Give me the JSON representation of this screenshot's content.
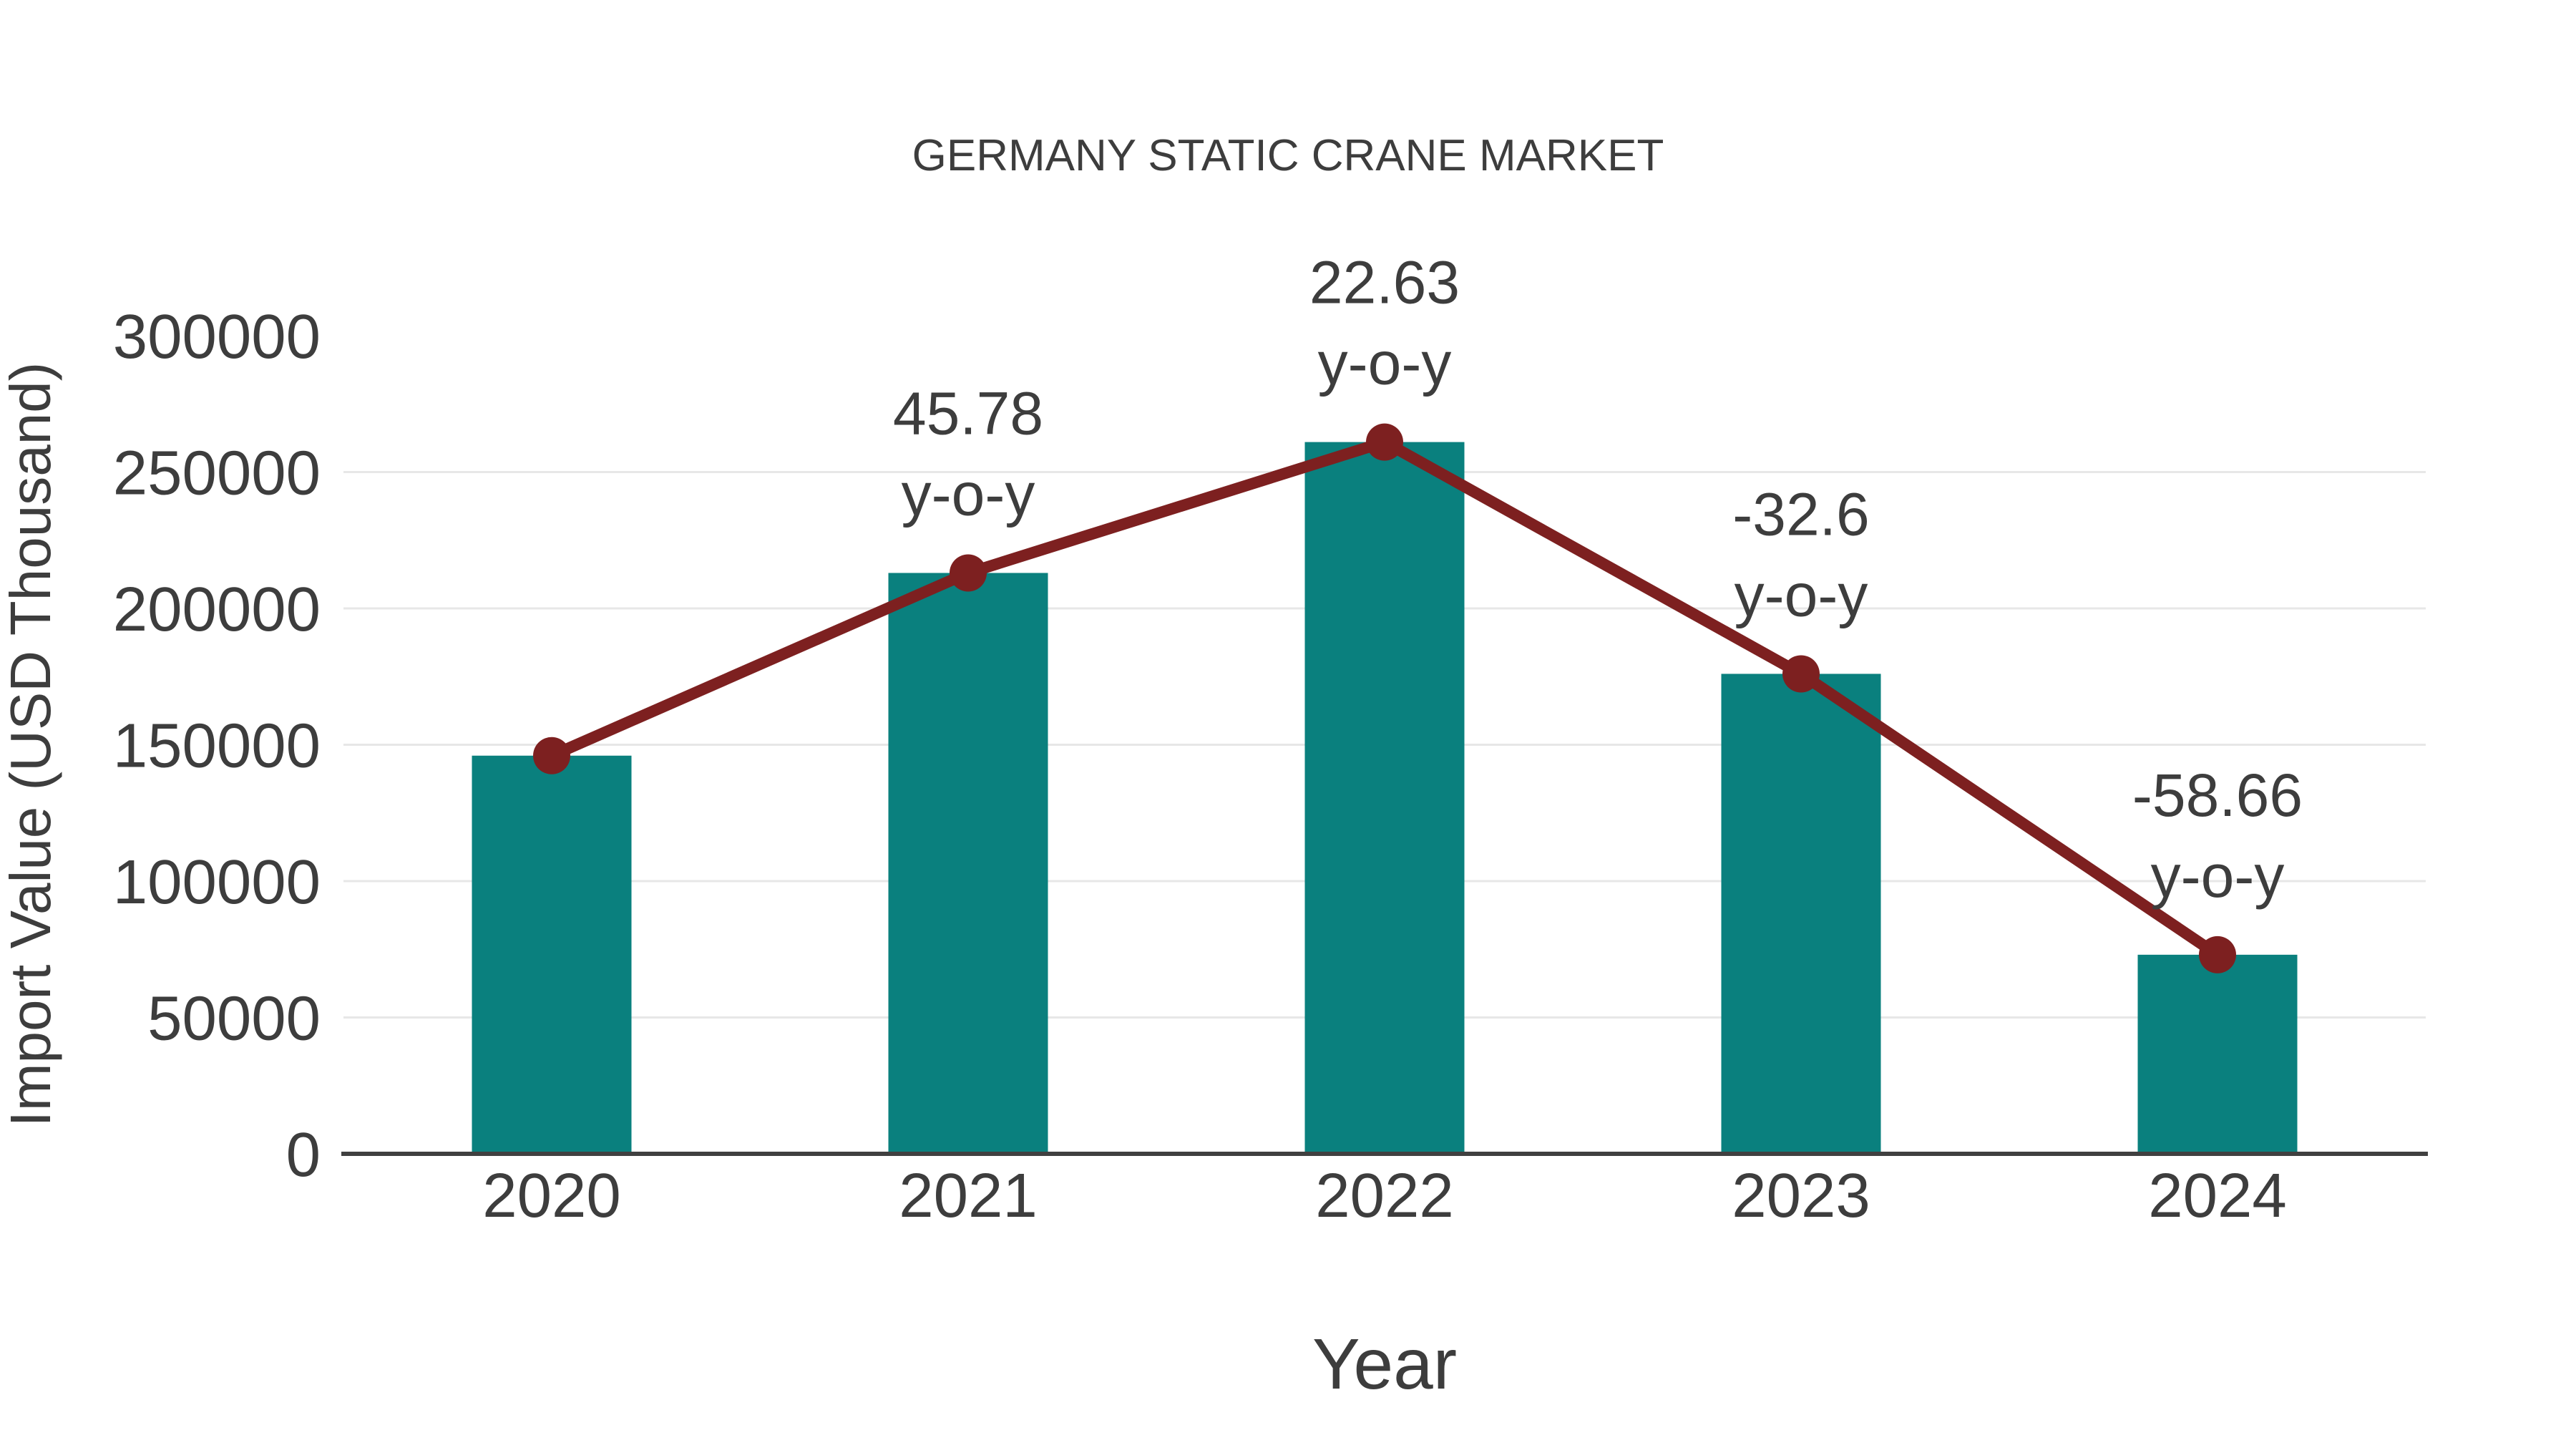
{
  "background_color": "#ffffff",
  "text_color": "#3d3d3d",
  "chart_data": {
    "type": "bar",
    "title": "GERMANY STATIC CRANE MARKET",
    "xlabel": "Year",
    "ylabel": "Import Value (USD Thousand)",
    "categories": [
      "2020",
      "2021",
      "2022",
      "2023",
      "2024"
    ],
    "series": [
      {
        "name": "Import Value (USD Thousand)",
        "type": "bar",
        "color": "#0a807e",
        "values": [
          146000,
          213000,
          261000,
          176000,
          73000
        ]
      },
      {
        "name": "y-o-y trend line",
        "type": "line",
        "color": "#7d2020",
        "values": [
          146000,
          213000,
          261000,
          176000,
          73000
        ]
      }
    ],
    "annotations": [
      {
        "category": "2021",
        "value_label": "45.78",
        "suffix_label": "y-o-y"
      },
      {
        "category": "2022",
        "value_label": "22.63",
        "suffix_label": "y-o-y"
      },
      {
        "category": "2023",
        "value_label": "-32.6",
        "suffix_label": "y-o-y"
      },
      {
        "category": "2024",
        "value_label": "-58.66",
        "suffix_label": "y-o-y"
      }
    ],
    "yticks": [
      0,
      50000,
      100000,
      150000,
      200000,
      250000,
      300000
    ],
    "ylim": [
      0,
      300000
    ],
    "grid": true,
    "legend_position": "none",
    "gridline_color": "#e7e7e7",
    "axisline_color": "#404040"
  }
}
